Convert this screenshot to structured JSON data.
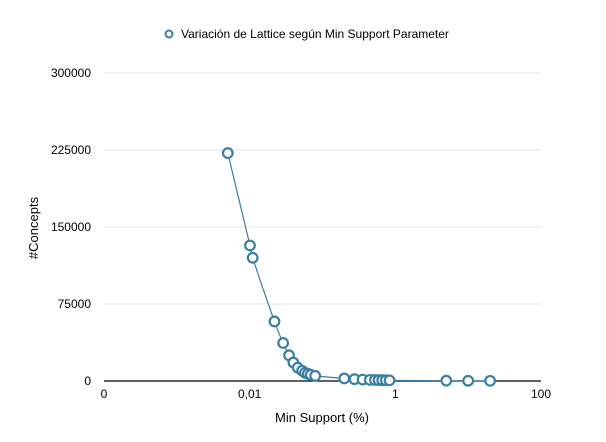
{
  "chart_data": {
    "type": "scatter",
    "title": "",
    "legend": {
      "position": "top-center"
    },
    "grid": true,
    "series_color": "#3a7ea1",
    "series": [
      {
        "name": "Variación de Lattice según Min Support Parameter",
        "x": [
          0.00501,
          0.0101,
          0.011,
          0.0219,
          0.0288,
          0.0347,
          0.0398,
          0.0457,
          0.0525,
          0.0575,
          0.063,
          0.0692,
          0.0794,
          0.199,
          0.275,
          0.355,
          0.447,
          0.525,
          0.589,
          0.661,
          0.741,
          0.832,
          5.01,
          10.0,
          20.0
        ],
        "y": [
          222000,
          132000,
          120000,
          58000,
          37000,
          25000,
          18000,
          13000,
          10000,
          8000,
          7000,
          6000,
          5000,
          2500,
          1800,
          1400,
          1100,
          1000,
          900,
          800,
          700,
          600,
          300,
          200,
          150
        ]
      }
    ],
    "x_axis": {
      "label": "Min Support (%)",
      "scale": "log",
      "range": [
        0.0001,
        100
      ],
      "ticks": [
        0.0001,
        0.01,
        1,
        100
      ],
      "tick_labels": [
        "0",
        "0,01",
        "1",
        "100"
      ]
    },
    "y_axis": {
      "label": "#Concepts",
      "range": [
        0,
        300000
      ],
      "ticks": [
        0,
        75000,
        150000,
        225000,
        300000
      ],
      "tick_labels": [
        "0",
        "75000",
        "150000",
        "225000",
        "300000"
      ]
    }
  }
}
